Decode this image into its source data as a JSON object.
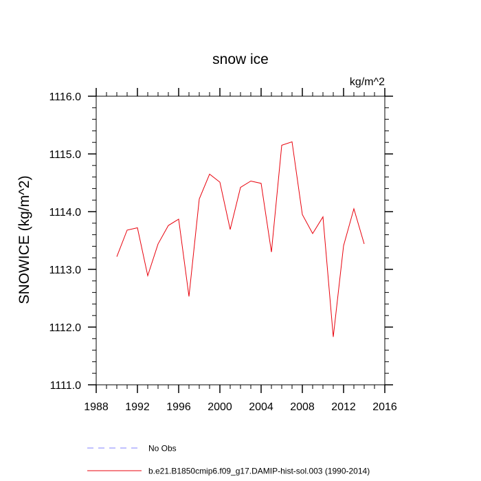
{
  "chart_data": {
    "type": "line",
    "title": "snow ice",
    "units": "kg/m^2",
    "xlabel": "",
    "ylabel": "SNOWICE  (kg/m^2)",
    "xlim": [
      1988,
      2016
    ],
    "ylim": [
      1111.0,
      1116.0
    ],
    "x_ticks": [
      1988,
      1992,
      1996,
      2000,
      2004,
      2008,
      2012,
      2016
    ],
    "x_tick_labels": [
      "1988",
      "1992",
      "1996",
      "2000",
      "2004",
      "2008",
      "2012",
      "2016"
    ],
    "y_ticks": [
      1111.0,
      1112.0,
      1113.0,
      1114.0,
      1115.0,
      1116.0
    ],
    "y_tick_labels": [
      "1111.0",
      "1112.0",
      "1113.0",
      "1114.0",
      "1115.0",
      "1116.0"
    ],
    "grid": false,
    "legend_position": "bottom",
    "series": [
      {
        "name": "b.e21.B1850cmip6.f09_g17.DAMIP-hist-sol.003 (1990-2014)",
        "color": "#e8000b",
        "style": "solid",
        "x": [
          1990,
          1991,
          1992,
          1993,
          1994,
          1995,
          1996,
          1997,
          1998,
          1999,
          2000,
          2001,
          2002,
          2003,
          2004,
          2005,
          2006,
          2007,
          2008,
          2009,
          2010,
          2011,
          2012,
          2013,
          2014
        ],
        "y": [
          1113.22,
          1113.68,
          1113.72,
          1112.89,
          1113.44,
          1113.76,
          1113.87,
          1112.53,
          1114.22,
          1114.65,
          1114.51,
          1113.69,
          1114.42,
          1114.53,
          1114.49,
          1113.3,
          1115.15,
          1115.21,
          1113.95,
          1113.62,
          1113.91,
          1111.83,
          1113.41,
          1114.05,
          1113.44
        ]
      }
    ],
    "legend": [
      {
        "label": "No Obs",
        "color": "#8080ff",
        "style": "dashed"
      },
      {
        "label": "b.e21.B1850cmip6.f09_g17.DAMIP-hist-sol.003 (1990-2014)",
        "color": "#e8000b",
        "style": "solid"
      }
    ]
  }
}
